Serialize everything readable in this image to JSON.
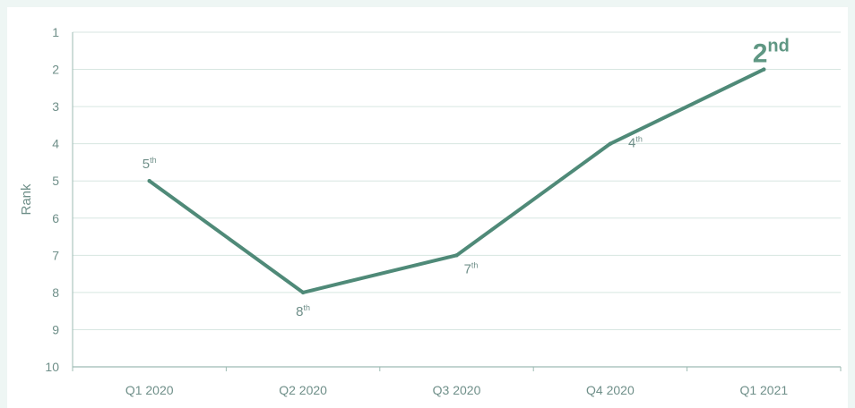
{
  "chart_data": {
    "type": "line",
    "title": "",
    "xlabel": "",
    "ylabel": "Rank",
    "y_reversed": true,
    "ylim": [
      1,
      10
    ],
    "yticks": [
      1,
      2,
      3,
      4,
      5,
      6,
      7,
      8,
      9,
      10
    ],
    "categories": [
      "Q1 2020",
      "Q2 2020",
      "Q3 2020",
      "Q4 2020",
      "Q1 2021"
    ],
    "series": [
      {
        "values": [
          5,
          8,
          7,
          4,
          2
        ],
        "data_labels": [
          {
            "num": "5",
            "suffix": "th"
          },
          {
            "num": "8",
            "suffix": "th"
          },
          {
            "num": "7",
            "suffix": "th"
          },
          {
            "num": "4",
            "suffix": "th"
          },
          {
            "num": "2",
            "suffix": "nd"
          }
        ]
      }
    ],
    "grid": true,
    "colors": {
      "line": "#4f8a78",
      "grid": "#d7e6e1",
      "axis": "#9dbbb3",
      "text": "#6f8f89",
      "highlight_label": "#5f9783"
    }
  }
}
